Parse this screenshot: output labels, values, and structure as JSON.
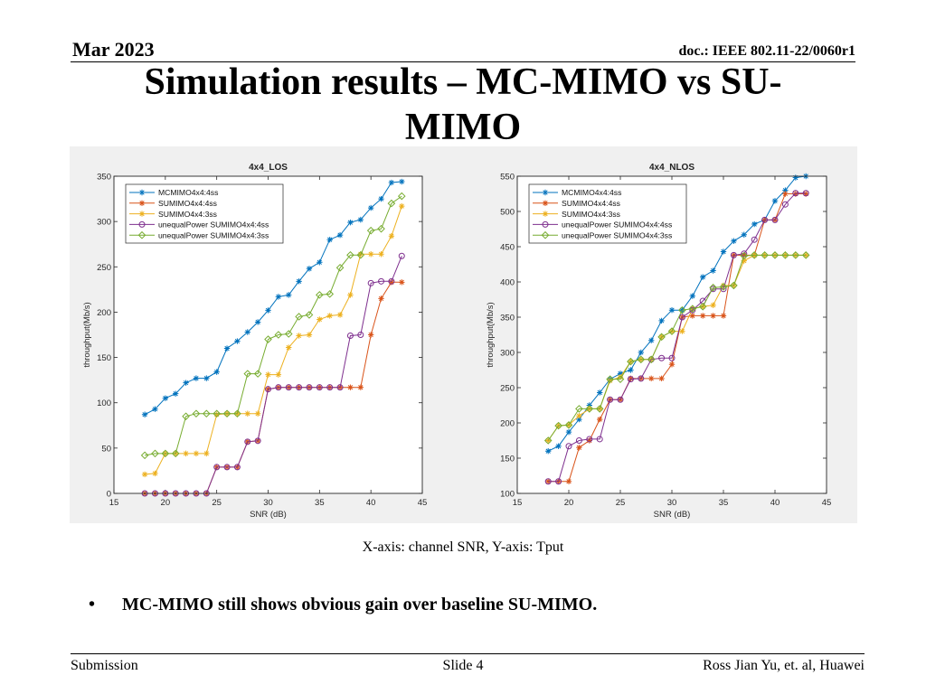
{
  "header": {
    "date": "Mar 2023",
    "doc": "doc.: IEEE 802.11-22/0060r1"
  },
  "title": {
    "line1": "Simulation results – MC-MIMO vs SU-",
    "line2": "MIMO"
  },
  "caption": "X-axis: channel SNR, Y-axis: Tput",
  "bullet": {
    "symbol": "•",
    "text": "MC-MIMO still shows obvious gain over baseline SU-MIMO."
  },
  "footer": {
    "left": "Submission",
    "center": "Slide 4",
    "right": "Ross Jian Yu, et. al, Huawei"
  },
  "colors": {
    "mc": "#0072bd",
    "su4": "#d95319",
    "su3": "#edb120",
    "uneq4": "#7e2f8e",
    "uneq3": "#77ac30"
  },
  "chart_data": [
    {
      "type": "line",
      "title": "4x4_LOS",
      "xlabel": "SNR (dB)",
      "ylabel": "throughput(Mb/s)",
      "xlim": [
        15,
        45
      ],
      "ylim": [
        0,
        350
      ],
      "xticks": [
        15,
        20,
        25,
        30,
        35,
        40,
        45
      ],
      "yticks": [
        0,
        50,
        100,
        150,
        200,
        250,
        300,
        350
      ],
      "legend_position": "top-left",
      "x": [
        18,
        19,
        20,
        21,
        22,
        23,
        24,
        25,
        26,
        27,
        28,
        29,
        30,
        31,
        32,
        33,
        34,
        35,
        36,
        37,
        38,
        39,
        40,
        41,
        42,
        43
      ],
      "series": [
        {
          "name": "MCMIMO4x4:4ss",
          "color_key": "mc",
          "marker": "star",
          "values": [
            87,
            93,
            105,
            110,
            122,
            127,
            127,
            134,
            160,
            168,
            178,
            189,
            202,
            217,
            219,
            234,
            248,
            255,
            280,
            285,
            299,
            302,
            315,
            325,
            343,
            344
          ]
        },
        {
          "name": "SUMIMO4x4:4ss",
          "color_key": "su4",
          "marker": "star",
          "values": [
            0,
            0,
            0,
            0,
            0,
            0,
            0,
            29,
            29,
            29,
            57,
            58,
            115,
            117,
            117,
            117,
            117,
            117,
            117,
            117,
            117,
            117,
            175,
            215,
            233,
            233
          ]
        },
        {
          "name": "SUMIMO4x4:3ss",
          "color_key": "su3",
          "marker": "star",
          "values": [
            21,
            22,
            44,
            44,
            44,
            44,
            44,
            87,
            88,
            88,
            88,
            88,
            131,
            131,
            161,
            174,
            175,
            192,
            196,
            197,
            219,
            264,
            264,
            264,
            284,
            317
          ]
        },
        {
          "name": "unequalPower SUMIMO4x4:4ss",
          "color_key": "uneq4",
          "marker": "circle",
          "values": [
            0,
            0,
            0,
            0,
            0,
            0,
            0,
            29,
            29,
            29,
            57,
            58,
            115,
            117,
            117,
            117,
            117,
            117,
            117,
            117,
            174,
            175,
            232,
            234,
            234,
            262
          ]
        },
        {
          "name": "unequalPower SUMIMO4x4:3ss",
          "color_key": "uneq3",
          "marker": "diamond",
          "values": [
            42,
            44,
            44,
            44,
            85,
            88,
            88,
            88,
            88,
            88,
            132,
            132,
            170,
            175,
            176,
            195,
            197,
            219,
            220,
            249,
            263,
            263,
            290,
            292,
            320,
            328
          ]
        }
      ]
    },
    {
      "type": "line",
      "title": "4x4_NLOS",
      "xlabel": "SNR (dB)",
      "ylabel": "throughput(Mb/s)",
      "xlim": [
        15,
        45
      ],
      "ylim": [
        100,
        550
      ],
      "xticks": [
        15,
        20,
        25,
        30,
        35,
        40,
        45
      ],
      "yticks": [
        100,
        150,
        200,
        250,
        300,
        350,
        400,
        450,
        500,
        550
      ],
      "legend_position": "top-left",
      "x": [
        18,
        19,
        20,
        21,
        22,
        23,
        24,
        25,
        26,
        27,
        28,
        29,
        30,
        31,
        32,
        33,
        34,
        35,
        36,
        37,
        38,
        39,
        40,
        41,
        42,
        43
      ],
      "series": [
        {
          "name": "MCMIMO4x4:4ss",
          "color_key": "mc",
          "marker": "star",
          "values": [
            160,
            167,
            187,
            205,
            225,
            243,
            262,
            270,
            275,
            300,
            317,
            345,
            360,
            360,
            380,
            407,
            416,
            443,
            458,
            467,
            482,
            488,
            515,
            530,
            548,
            550
          ]
        },
        {
          "name": "SUMIMO4x4:4ss",
          "color_key": "su4",
          "marker": "star",
          "values": [
            117,
            117,
            117,
            165,
            175,
            205,
            233,
            233,
            263,
            263,
            263,
            263,
            283,
            350,
            352,
            352,
            352,
            352,
            438,
            438,
            438,
            488,
            488,
            525,
            525,
            525
          ]
        },
        {
          "name": "SUMIMO4x4:3ss",
          "color_key": "su3",
          "marker": "star",
          "values": [
            175,
            196,
            197,
            210,
            220,
            220,
            260,
            265,
            287,
            290,
            290,
            322,
            330,
            330,
            362,
            365,
            367,
            395,
            395,
            430,
            438,
            438,
            438,
            438,
            438,
            438
          ]
        },
        {
          "name": "unequalPower SUMIMO4x4:4ss",
          "color_key": "uneq4",
          "marker": "circle",
          "values": [
            117,
            117,
            167,
            175,
            177,
            177,
            233,
            233,
            262,
            263,
            290,
            292,
            292,
            350,
            360,
            373,
            390,
            390,
            438,
            440,
            460,
            488,
            488,
            510,
            526,
            526
          ]
        },
        {
          "name": "unequalPower SUMIMO4x4:3ss",
          "color_key": "uneq3",
          "marker": "diamond",
          "values": [
            175,
            196,
            197,
            220,
            220,
            220,
            262,
            262,
            287,
            290,
            290,
            322,
            330,
            360,
            362,
            365,
            392,
            393,
            395,
            437,
            438,
            438,
            438,
            438,
            438,
            438
          ]
        }
      ]
    }
  ]
}
